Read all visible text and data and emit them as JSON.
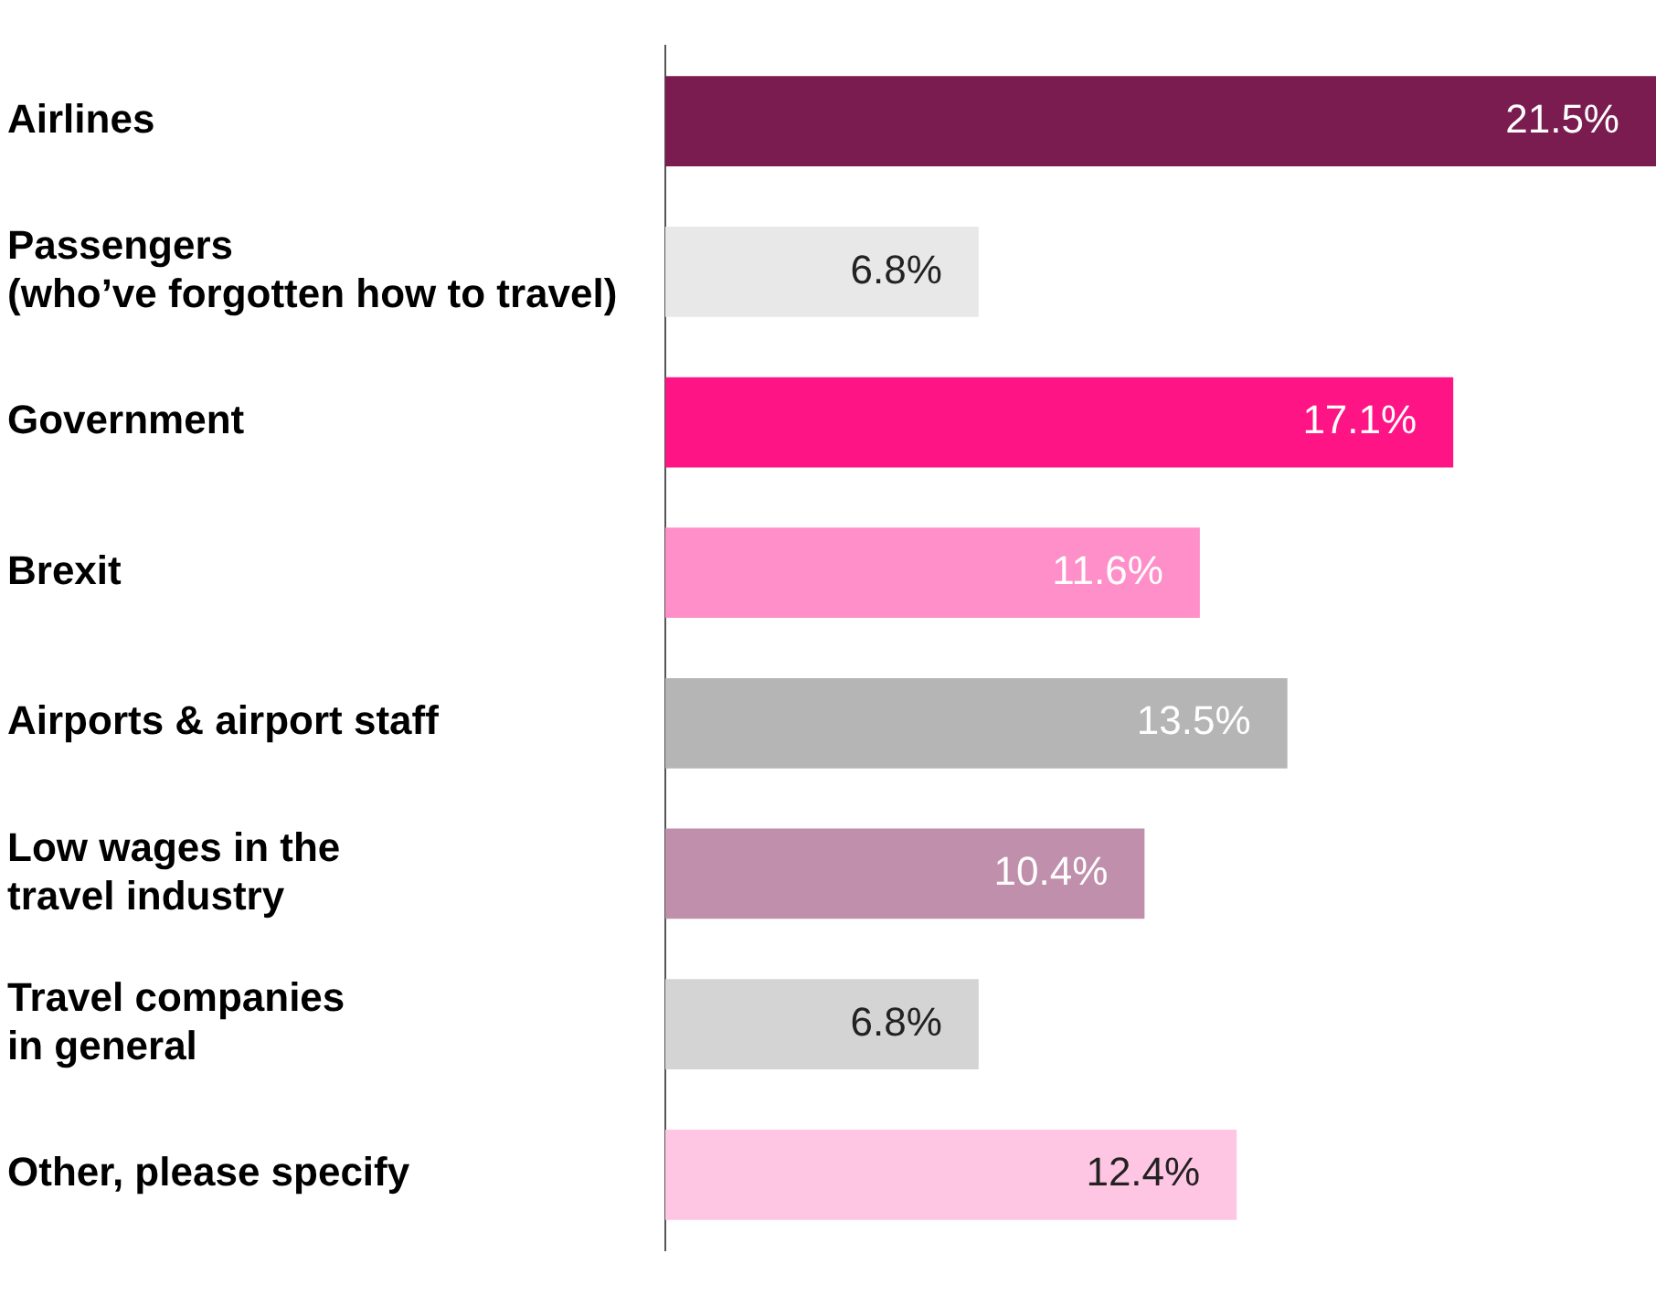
{
  "chart_data": {
    "type": "bar",
    "orientation": "horizontal",
    "categories": [
      "Airlines",
      "Passengers\n(who’ve forgotten how to travel)",
      "Government",
      "Brexit",
      "Airports & airport staff",
      "Low wages in the\ntravel industry",
      "Travel companies\nin general",
      "Other, please specify"
    ],
    "values": [
      21.5,
      6.8,
      17.1,
      11.6,
      13.5,
      10.4,
      6.8,
      12.4
    ],
    "colors": [
      "#7a1c50",
      "#e8e8e8",
      "#ff1485",
      "#ff8fc8",
      "#b5b5b5",
      "#c08fab",
      "#d4d4d4",
      "#ffc6e3"
    ],
    "value_labels": [
      "21.5%",
      "6.8%",
      "17.1%",
      "11.6%",
      "13.5%",
      "10.4%",
      "6.8%",
      "12.4%"
    ],
    "xlim": [
      0,
      21.5
    ],
    "tick_labels": "y"
  }
}
